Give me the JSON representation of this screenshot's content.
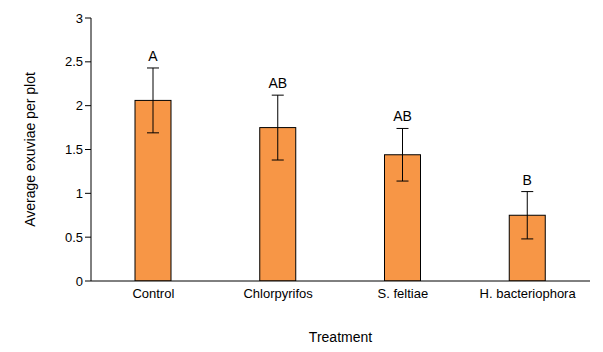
{
  "chart_data": {
    "type": "bar",
    "categories": [
      "Control",
      "Chlorpyrifos",
      "S. feltiae",
      "H. bacteriophora"
    ],
    "values": [
      2.06,
      1.75,
      1.44,
      0.75
    ],
    "errors": [
      0.37,
      0.37,
      0.3,
      0.27
    ],
    "annotations": [
      "A",
      "AB",
      "AB",
      "B"
    ],
    "color": "#f79646",
    "x_label": "Treatment",
    "y_label": "Average exuviae per plot",
    "ylim": [
      0,
      3
    ],
    "yticks": [
      0,
      0.5,
      1,
      1.5,
      2,
      2.5,
      3
    ],
    "grid": false
  }
}
